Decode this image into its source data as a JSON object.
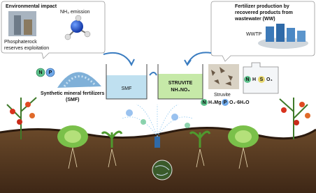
{
  "left_panel": {
    "title": "Environmental impact",
    "emission": "NH₃ emission",
    "resource": [
      "Phosphaterock",
      "reserves exploitation"
    ]
  },
  "right_panel": {
    "title": [
      "Fertilizer production by",
      "recovered products from",
      "wastewater (WW)"
    ],
    "plant": "WWTP"
  },
  "smf": {
    "nutrients": [
      "N",
      "P"
    ],
    "label": [
      "Synthetic mineral fertilizers",
      "(SMF)"
    ],
    "beaker": "SMF"
  },
  "struvite_beaker": [
    "STRUVITE",
    "NH₄NO₃"
  ],
  "struvite": {
    "label": "Struvite",
    "formula": [
      "N",
      "H₄Mg",
      "P",
      "O₄·6H₂O"
    ]
  },
  "jug": [
    "N",
    "H",
    "S",
    "O₄"
  ]
}
